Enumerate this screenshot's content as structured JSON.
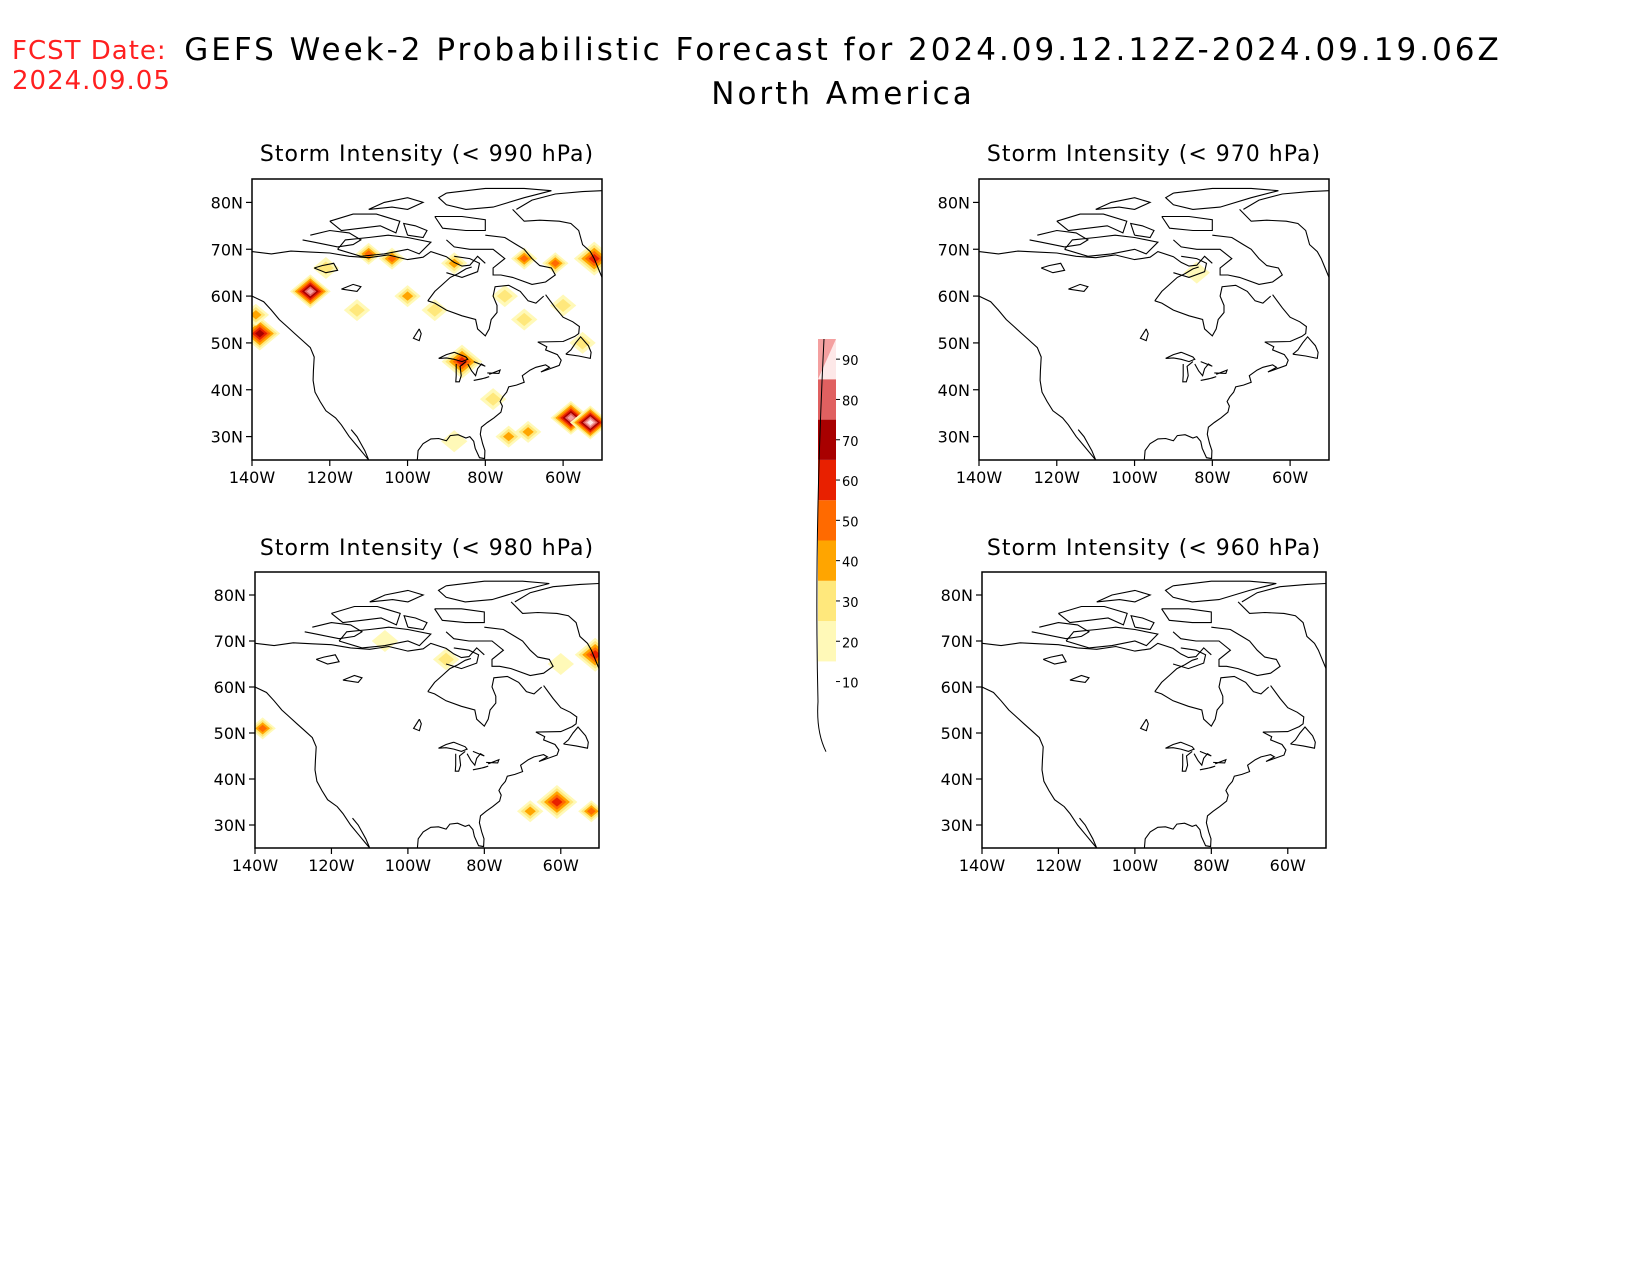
{
  "header": {
    "fcst_label": "FCST Date:",
    "fcst_date": "2024.09.05",
    "title": "GEFS Week-2 Probabilistic Forecast for 2024.09.12.12Z-2024.09.19.06Z",
    "subtitle": "North America"
  },
  "panels": [
    {
      "id": "p990",
      "title": "Storm Intensity (< 990 hPa)"
    },
    {
      "id": "p970",
      "title": "Storm Intensity (< 970 hPa)"
    },
    {
      "id": "p980",
      "title": "Storm Intensity (< 980 hPa)"
    },
    {
      "id": "p960",
      "title": "Storm Intensity (< 960 hPa)"
    }
  ],
  "axes": {
    "lat_labels": [
      "80N",
      "70N",
      "60N",
      "50N",
      "40N",
      "30N"
    ],
    "lon_labels": [
      "140W",
      "120W",
      "100W",
      "80W",
      "60W"
    ]
  },
  "colorbar": {
    "levels": [
      "10",
      "20",
      "30",
      "40",
      "50",
      "60",
      "70",
      "80",
      "90"
    ],
    "colors": [
      "#fff9b8",
      "#ffe87c",
      "#ffa500",
      "#ff6a00",
      "#e82000",
      "#a80000",
      "#e06060",
      "#f4a0a0",
      "#fde8e8"
    ]
  },
  "map_data": {
    "p990": [
      {
        "lon": -125,
        "lat": 61,
        "p": 80
      },
      {
        "lon": -138,
        "lat": 52,
        "p": 60
      },
      {
        "lon": -139,
        "lat": 56,
        "p": 35
      },
      {
        "lon": -110,
        "lat": 69,
        "p": 40
      },
      {
        "lon": -104,
        "lat": 68,
        "p": 40
      },
      {
        "lon": -88,
        "lat": 67,
        "p": 35
      },
      {
        "lon": -70,
        "lat": 68,
        "p": 40
      },
      {
        "lon": -62,
        "lat": 67,
        "p": 40
      },
      {
        "lon": -52,
        "lat": 68,
        "p": 50
      },
      {
        "lon": -100,
        "lat": 60,
        "p": 35
      },
      {
        "lon": -121,
        "lat": 66,
        "p": 25
      },
      {
        "lon": -113,
        "lat": 57,
        "p": 20
      },
      {
        "lon": -93,
        "lat": 57,
        "p": 20
      },
      {
        "lon": -75,
        "lat": 60,
        "p": 20
      },
      {
        "lon": -60,
        "lat": 58,
        "p": 20
      },
      {
        "lon": -86,
        "lat": 46,
        "p": 50
      },
      {
        "lon": -78,
        "lat": 38,
        "p": 20
      },
      {
        "lon": -70,
        "lat": 55,
        "p": 25
      },
      {
        "lon": -58,
        "lat": 34,
        "p": 80
      },
      {
        "lon": -53,
        "lat": 33,
        "p": 90
      },
      {
        "lon": -69,
        "lat": 31,
        "p": 30
      },
      {
        "lon": -74,
        "lat": 30,
        "p": 30
      },
      {
        "lon": -88,
        "lat": 29,
        "p": 15
      },
      {
        "lon": -55,
        "lat": 50,
        "p": 20
      }
    ],
    "p970": [
      {
        "lon": -84,
        "lat": 65,
        "p": 15
      }
    ],
    "p980": [
      {
        "lon": -138,
        "lat": 51,
        "p": 40
      },
      {
        "lon": -51,
        "lat": 67,
        "p": 50
      },
      {
        "lon": -90,
        "lat": 66,
        "p": 20
      },
      {
        "lon": -61,
        "lat": 35,
        "p": 50
      },
      {
        "lon": -52,
        "lat": 33,
        "p": 40
      },
      {
        "lon": -68,
        "lat": 33,
        "p": 30
      },
      {
        "lon": -60,
        "lat": 65,
        "p": 15
      },
      {
        "lon": -106,
        "lat": 70,
        "p": 15
      }
    ],
    "p960": []
  }
}
